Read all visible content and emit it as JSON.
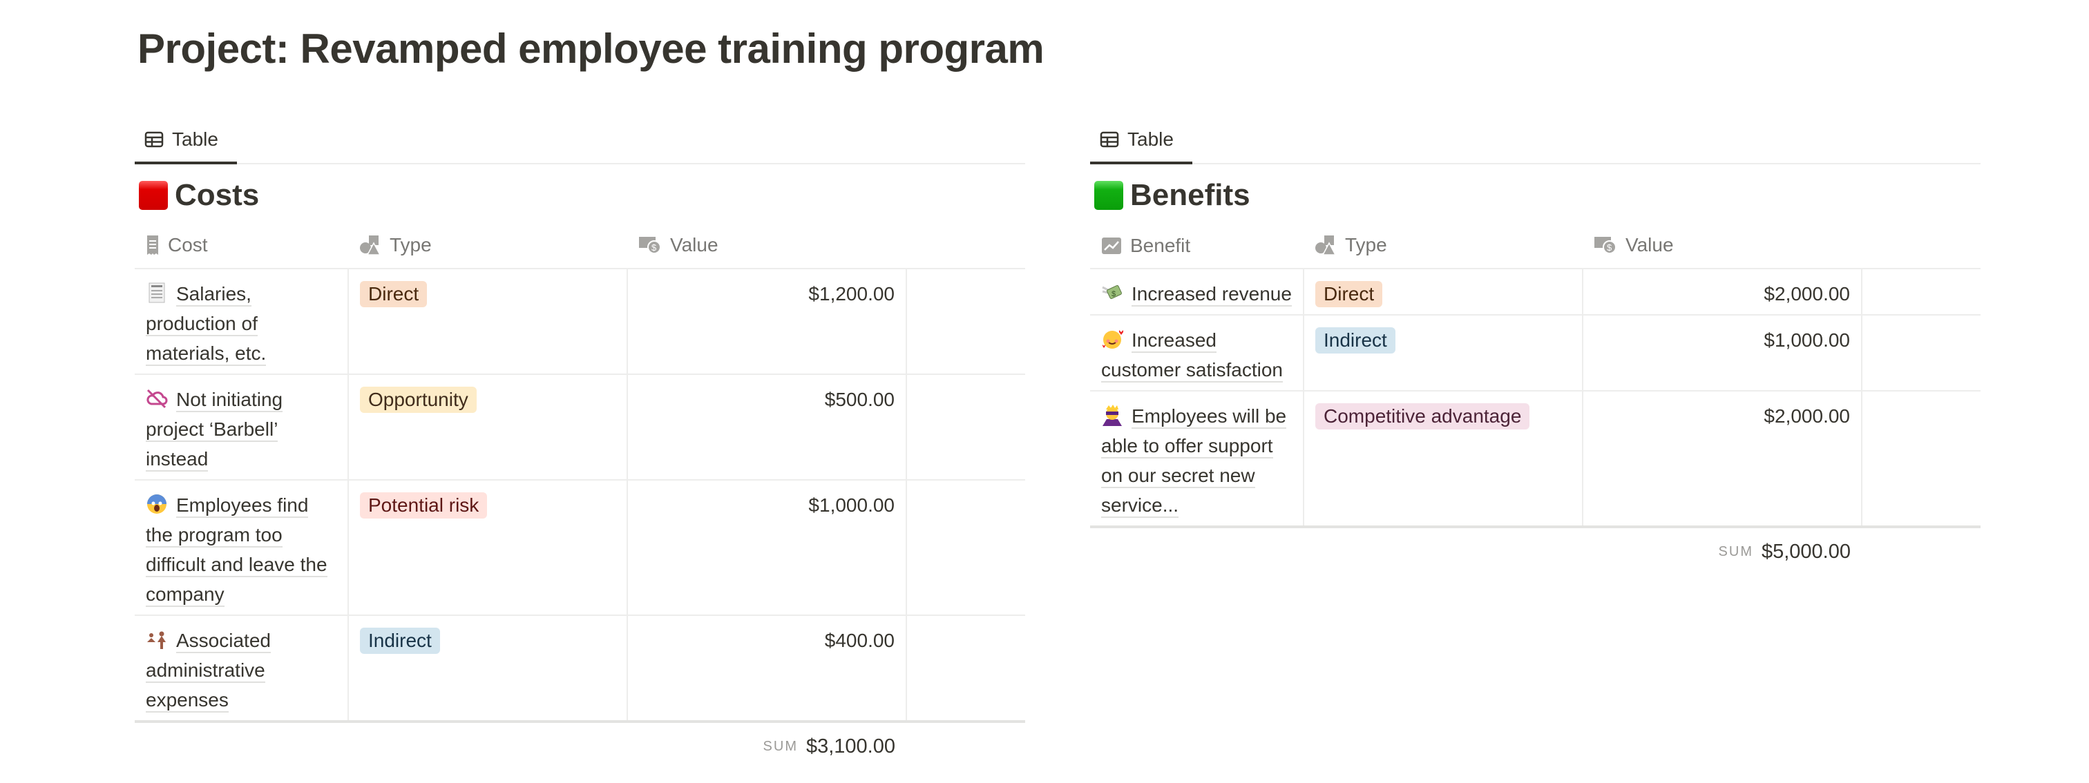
{
  "page_title": "Project: Revamped employee training program",
  "costs": {
    "tab_label": "Table",
    "heading": "Costs",
    "columns": [
      "Cost",
      "Type",
      "Value"
    ],
    "rows": [
      {
        "icon": "receipt-icon",
        "name": "Salaries, production of materials, etc.",
        "type": "Direct",
        "value": "$1,200.00"
      },
      {
        "icon": "cloud-off-icon",
        "name": "Not initiating project ‘Barbell’ instead",
        "type": "Opportunity",
        "value": "$500.00"
      },
      {
        "icon": "screaming-face-icon",
        "name": "Employees find the program too difficult and leave the company",
        "type": "Potential risk",
        "value": "$1,000.00"
      },
      {
        "icon": "people-icon",
        "name": "Associated administrative expenses",
        "type": "Indirect",
        "value": "$400.00"
      }
    ],
    "sum_label": "SUM",
    "sum_value": "$3,100.00"
  },
  "benefits": {
    "tab_label": "Table",
    "heading": "Benefits",
    "columns": [
      "Benefit",
      "Type",
      "Value"
    ],
    "rows": [
      {
        "icon": "money-wings-icon",
        "name": "Increased revenue",
        "type": "Direct",
        "value": "$2,000.00"
      },
      {
        "icon": "smiling-hearts-icon",
        "name": "Increased customer satisfaction",
        "type": "Indirect",
        "value": "$1,000.00"
      },
      {
        "icon": "supervillain-icon",
        "name": "Employees will be able to offer support on our secret new service...",
        "type": "Competitive advantage",
        "value": "$2,000.00"
      }
    ],
    "sum_label": "SUM",
    "sum_value": "$5,000.00"
  },
  "tag_colors": {
    "Direct": {
      "bg": "#fadec9",
      "fg": "#49290e"
    },
    "Opportunity": {
      "bg": "#fdecc8",
      "fg": "#402c1b"
    },
    "Potential risk": {
      "bg": "#ffe2dd",
      "fg": "#5d1715"
    },
    "Indirect": {
      "bg": "#d3e5ef",
      "fg": "#183347"
    },
    "Competitive advantage": {
      "bg": "#f5e0e9",
      "fg": "#4c2337"
    }
  },
  "heading_colors": {
    "costs": "#e00000",
    "benefits": "#12b012"
  }
}
